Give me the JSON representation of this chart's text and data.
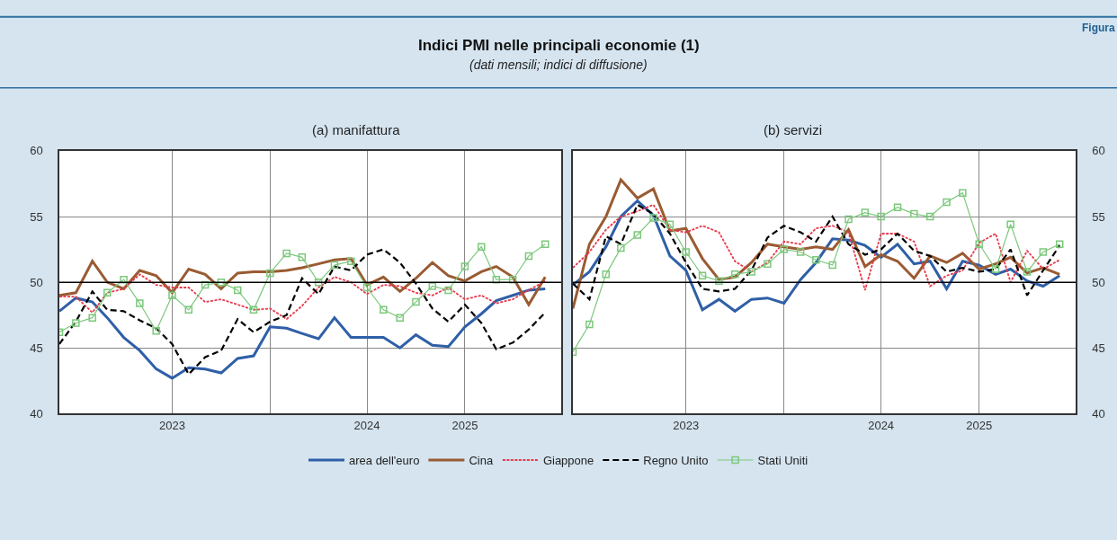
{
  "chart_data": [
    {
      "type": "other",
      "title": "Indici PMI nelle principali economie (1)",
      "subtitle": "(dati mensili; indici di diffusione)",
      "annotations": [
        "Figura"
      ]
    },
    {
      "type": "line",
      "title": "(a) manifattura",
      "x": [
        "2022-12",
        "2023-01",
        "2023-02",
        "2023-03",
        "2023-04",
        "2023-05",
        "2023-06",
        "2023-07",
        "2023-08",
        "2023-09",
        "2023-10",
        "2023-11",
        "2023-12",
        "2024-01",
        "2024-02",
        "2024-03",
        "2024-04",
        "2024-05",
        "2024-06",
        "2024-07",
        "2024-08",
        "2024-09",
        "2024-10",
        "2024-11",
        "2024-12",
        "2025-01",
        "2025-02",
        "2025-03",
        "2025-04",
        "2025-05",
        "2025-06"
      ],
      "xlim": [
        "2022-12-01",
        "2025-07-01"
      ],
      "xticks": [
        {
          "value": "2023-07-01",
          "label": "2023"
        },
        {
          "value": "2024-01-01",
          "label": null
        },
        {
          "value": "2024-07-01",
          "label": "2024"
        },
        {
          "value": "2025-01-01",
          "label": "2025"
        }
      ],
      "ylim": [
        40,
        60
      ],
      "yticks": [
        40,
        45,
        50,
        55,
        60
      ],
      "grid": true,
      "legend": "bottom",
      "ref_lines": [
        {
          "axis": "y",
          "value": 50,
          "label": null,
          "color": "#000000"
        }
      ],
      "series": [
        {
          "name": "area dell'euro",
          "color": "#2f5fa7",
          "line_style": "solid",
          "values": [
            47.8,
            48.8,
            48.5,
            47.3,
            45.8,
            44.8,
            43.4,
            42.7,
            43.5,
            43.4,
            43.1,
            44.2,
            44.4,
            46.6,
            46.5,
            46.1,
            45.7,
            47.3,
            45.8,
            45.8,
            45.8,
            45.0,
            46.0,
            45.2,
            45.1,
            46.6,
            47.6,
            48.6,
            49.0,
            49.4,
            49.5
          ]
        },
        {
          "name": "Cina",
          "color": "#9a5b32",
          "line_style": "solid",
          "values": [
            49.0,
            49.2,
            51.6,
            50.0,
            49.5,
            50.9,
            50.5,
            49.2,
            51.0,
            50.6,
            49.5,
            50.7,
            50.8,
            50.8,
            50.9,
            51.1,
            51.4,
            51.7,
            51.8,
            49.8,
            50.4,
            49.3,
            50.3,
            51.5,
            50.5,
            50.1,
            50.8,
            51.2,
            50.4,
            48.3,
            50.4
          ]
        },
        {
          "name": "Giappone",
          "color": "#e8394b",
          "line_style": "dotted",
          "values": [
            48.9,
            48.9,
            47.7,
            49.2,
            49.5,
            50.6,
            49.8,
            49.6,
            49.6,
            48.5,
            48.7,
            48.3,
            47.9,
            48.0,
            47.2,
            48.2,
            49.6,
            50.4,
            50.0,
            49.1,
            49.8,
            49.7,
            49.2,
            49.0,
            49.6,
            48.7,
            49.0,
            48.4,
            48.7,
            49.4,
            50.1
          ]
        },
        {
          "name": "Regno Unito",
          "color": "#000000",
          "line_style": "dashed",
          "values": [
            45.3,
            47.0,
            49.3,
            47.9,
            47.8,
            47.1,
            46.5,
            45.3,
            43.0,
            44.3,
            44.8,
            47.2,
            46.2,
            47.0,
            47.5,
            50.3,
            49.1,
            51.2,
            50.9,
            52.1,
            52.5,
            51.5,
            49.9,
            48.0,
            47.0,
            48.3,
            46.9,
            44.9,
            45.4,
            46.4,
            47.7
          ]
        },
        {
          "name": "Stati Uniti",
          "color": "#7cc87c",
          "line_style": "solid",
          "marker": "square",
          "values": [
            46.2,
            46.9,
            47.3,
            49.2,
            50.2,
            48.4,
            46.3,
            49.0,
            47.9,
            49.8,
            50.0,
            49.4,
            47.9,
            50.7,
            52.2,
            51.9,
            50.0,
            51.3,
            51.6,
            49.6,
            47.9,
            47.3,
            48.5,
            49.7,
            49.4,
            51.2,
            52.7,
            50.2,
            50.2,
            52.0,
            52.9
          ]
        }
      ]
    },
    {
      "type": "line",
      "title": "(b) servizi",
      "x": [
        "2022-12",
        "2023-01",
        "2023-02",
        "2023-03",
        "2023-04",
        "2023-05",
        "2023-06",
        "2023-07",
        "2023-08",
        "2023-09",
        "2023-10",
        "2023-11",
        "2023-12",
        "2024-01",
        "2024-02",
        "2024-03",
        "2024-04",
        "2024-05",
        "2024-06",
        "2024-07",
        "2024-08",
        "2024-09",
        "2024-10",
        "2024-11",
        "2024-12",
        "2025-01",
        "2025-02",
        "2025-03",
        "2025-04",
        "2025-05",
        "2025-06"
      ],
      "xlim": [
        "2022-12-01",
        "2025-07-01"
      ],
      "xticks": [
        {
          "value": "2023-07-01",
          "label": "2023"
        },
        {
          "value": "2024-01-01",
          "label": null
        },
        {
          "value": "2024-07-01",
          "label": "2024"
        },
        {
          "value": "2025-01-01",
          "label": "2025"
        }
      ],
      "ylim": [
        40,
        60
      ],
      "yticks": [
        40,
        45,
        50,
        55,
        60
      ],
      "grid": true,
      "ref_lines": [
        {
          "axis": "y",
          "value": 50,
          "label": null,
          "color": "#000000"
        }
      ],
      "series": [
        {
          "color": "#2f5fa7",
          "line_style": "solid",
          "values": [
            49.8,
            50.8,
            52.7,
            55.0,
            56.2,
            55.1,
            52.0,
            50.9,
            47.9,
            48.7,
            47.8,
            48.7,
            48.8,
            48.4,
            50.2,
            51.5,
            53.3,
            53.2,
            52.8,
            51.9,
            52.9,
            51.4,
            51.6,
            49.5,
            51.6,
            51.3,
            50.6,
            51.0,
            50.1,
            49.7,
            50.5
          ]
        },
        {
          "color": "#9a5b32",
          "line_style": "solid",
          "values": [
            48.0,
            52.9,
            55.0,
            57.8,
            56.4,
            57.1,
            53.9,
            54.1,
            51.8,
            50.2,
            50.4,
            51.5,
            52.9,
            52.7,
            52.5,
            52.7,
            52.5,
            54.0,
            51.2,
            52.1,
            51.6,
            50.3,
            52.0,
            51.5,
            52.2,
            51.0,
            51.4,
            51.9,
            50.7,
            51.1,
            50.6
          ]
        },
        {
          "color": "#e8394b",
          "line_style": "dotted",
          "values": [
            51.1,
            52.3,
            54.0,
            55.0,
            55.4,
            55.9,
            54.0,
            53.8,
            54.3,
            53.8,
            51.6,
            50.8,
            51.5,
            53.1,
            52.9,
            54.1,
            54.3,
            53.8,
            49.4,
            53.7,
            53.7,
            53.1,
            49.7,
            50.5,
            50.9,
            53.0,
            53.7,
            50.0,
            52.4,
            51.0,
            51.7
          ]
        },
        {
          "color": "#000000",
          "line_style": "dashed",
          "values": [
            49.9,
            48.7,
            53.5,
            52.9,
            55.9,
            55.2,
            53.7,
            51.5,
            49.5,
            49.3,
            49.5,
            50.9,
            53.4,
            54.3,
            53.8,
            53.1,
            55.0,
            52.9,
            52.1,
            52.5,
            53.7,
            52.4,
            52.0,
            50.8,
            51.1,
            50.8,
            51.0,
            52.5,
            49.0,
            50.9,
            52.8
          ]
        },
        {
          "color": "#7cc87c",
          "line_style": "solid",
          "marker": "square",
          "values": [
            44.7,
            46.8,
            50.6,
            52.6,
            53.6,
            54.9,
            54.4,
            52.3,
            50.5,
            50.1,
            50.6,
            50.8,
            51.4,
            52.5,
            52.3,
            51.7,
            51.3,
            54.8,
            55.3,
            55.0,
            55.7,
            55.2,
            55.0,
            56.1,
            56.8,
            52.9,
            51.0,
            54.4,
            50.8,
            52.3,
            52.9
          ]
        }
      ]
    }
  ]
}
